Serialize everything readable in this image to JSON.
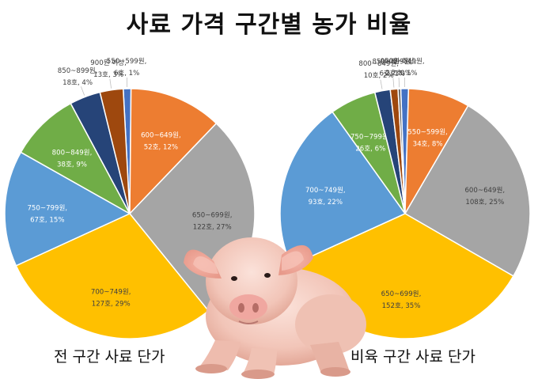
{
  "title": "사료 가격 구간별 농가 비율",
  "chart_data": [
    {
      "type": "pie",
      "title": "전 구간 사료 단가",
      "slices": [
        {
          "label": "550~599원",
          "count": "6호",
          "value": 1,
          "color": "#4472C4"
        },
        {
          "label": "600~649원",
          "count": "52호",
          "value": 12,
          "color": "#ED7D31"
        },
        {
          "label": "650~699원",
          "count": "122호",
          "value": 27,
          "color": "#A5A5A5"
        },
        {
          "label": "700~749원",
          "count": "127호",
          "value": 29,
          "color": "#FFC000"
        },
        {
          "label": "750~799원",
          "count": "67호",
          "value": 15,
          "color": "#5B9BD5"
        },
        {
          "label": "800~849원",
          "count": "38호",
          "value": 9,
          "color": "#70AD47"
        },
        {
          "label": "850~899원",
          "count": "18호",
          "value": 4,
          "color": "#264478"
        },
        {
          "label": "900원 이상",
          "count": "13호",
          "value": 3,
          "color": "#9E480E"
        }
      ]
    },
    {
      "type": "pie",
      "title": "비육 구간 사료 단가",
      "slices": [
        {
          "label": "500~549원",
          "count": "2호",
          "value": 1,
          "color": "#4472C4"
        },
        {
          "label": "550~599원",
          "count": "34호",
          "value": 8,
          "color": "#ED7D31"
        },
        {
          "label": "600~649원",
          "count": "108호",
          "value": 25,
          "color": "#A5A5A5"
        },
        {
          "label": "650~699원",
          "count": "152호",
          "value": 35,
          "color": "#FFC000"
        },
        {
          "label": "700~749원",
          "count": "93호",
          "value": 22,
          "color": "#5B9BD5"
        },
        {
          "label": "750~799원",
          "count": "26호",
          "value": 6,
          "color": "#70AD47"
        },
        {
          "label": "800~849원",
          "count": "10호",
          "value": 2,
          "color": "#264478"
        },
        {
          "label": "850~899원",
          "count": "6호",
          "value": 1,
          "color": "#9E480E"
        },
        {
          "label": "900원 이상",
          "count": "2호",
          "value": 0,
          "color": "#636363"
        }
      ]
    }
  ]
}
